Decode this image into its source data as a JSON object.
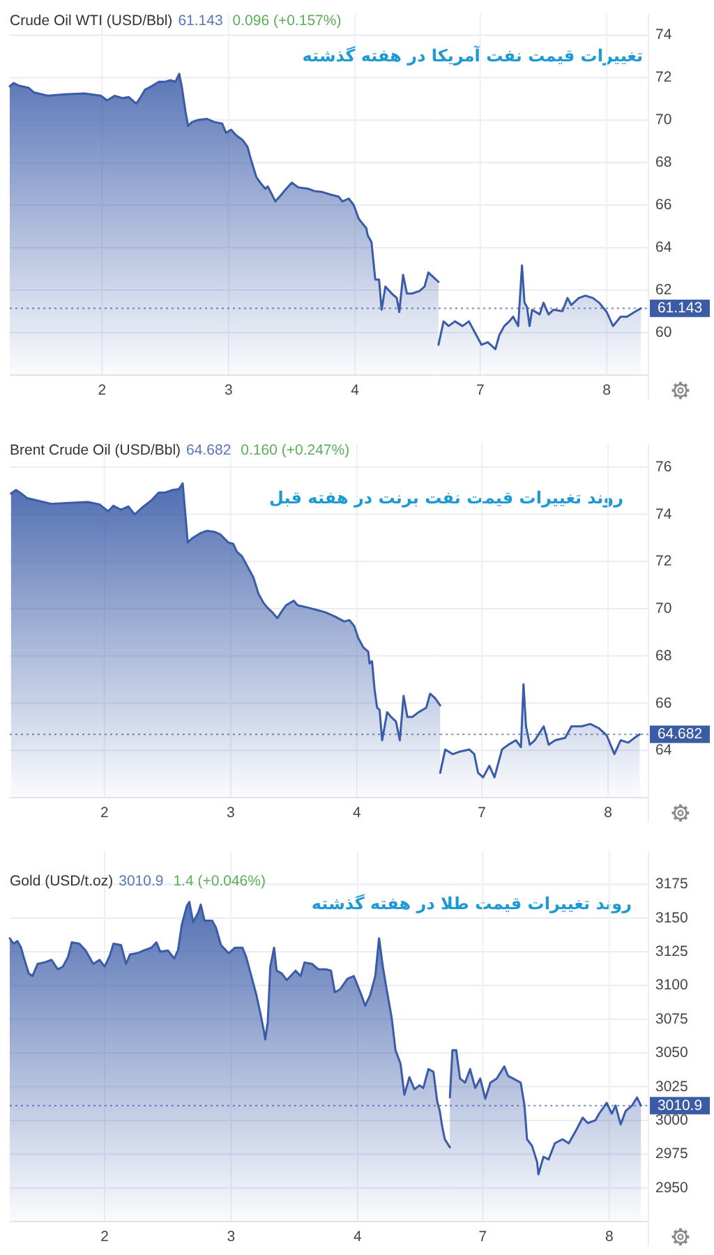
{
  "chart_data": [
    {
      "type": "area",
      "title": "Crude Oil WTI (USD/Bbl)",
      "subtitle": "تغییرات قیمت نفت آمریکا در هفته گذشته",
      "annotations": [
        "61.143",
        "0.096 (+0.157%)"
      ],
      "color": "#3a5ba8",
      "grid": true,
      "tick_labels": "x",
      "x": [
        1.27,
        1.3,
        1.34,
        1.42,
        1.46,
        1.57,
        1.71,
        1.86,
        1.99,
        2.04,
        2.1,
        2.16,
        2.21,
        2.27,
        2.3,
        2.34,
        2.39,
        2.45,
        2.5,
        2.54,
        2.58,
        2.61,
        2.63,
        2.66,
        2.68,
        2.71,
        2.76,
        2.83,
        2.89,
        2.95,
        2.98,
        3.02,
        3.06,
        3.11,
        3.15,
        3.18,
        3.22,
        3.26,
        3.29,
        3.31,
        3.37,
        3.41,
        3.44,
        3.5,
        3.55,
        3.63,
        3.68,
        3.74,
        3.81,
        3.87,
        3.9,
        3.95,
        3.99,
        4.03,
        4.09,
        4.1,
        4.13,
        4.16,
        4.19,
        4.21,
        4.24,
        4.29,
        4.33,
        4.35,
        4.38,
        4.41,
        4.45,
        4.51,
        4.55,
        4.58,
        4.62,
        4.66
      ],
      "values": [
        71.59,
        71.75,
        71.63,
        71.52,
        71.31,
        71.15,
        71.22,
        71.26,
        71.15,
        70.93,
        71.15,
        71.04,
        71.09,
        70.78,
        71.04,
        71.44,
        71.59,
        71.81,
        71.81,
        71.88,
        71.81,
        72.18,
        71.59,
        70.39,
        69.73,
        69.91,
        70.01,
        70.06,
        69.91,
        69.84,
        69.4,
        69.55,
        69.29,
        69.07,
        68.74,
        68.09,
        67.32,
        66.99,
        66.77,
        66.88,
        66.18,
        66.44,
        66.66,
        67.06,
        66.84,
        66.77,
        66.66,
        66.62,
        66.49,
        66.4,
        66.18,
        66.31,
        66.0,
        65.35,
        64.91,
        64.58,
        64.26,
        62.5,
        62.5,
        61.08,
        62.17,
        61.84,
        61.63,
        60.97,
        62.72,
        61.84,
        61.84,
        61.96,
        62.17,
        62.83,
        62.61,
        62.39
      ],
      "xlim": [
        1.27,
        4.66
      ],
      "xticks": [
        2,
        3,
        4
      ],
      "ylim": [
        58,
        75
      ],
      "yticks": [
        60,
        62,
        64,
        66,
        68,
        70,
        72,
        74
      ],
      "ref_lines": [
        {
          "axis": "y",
          "value": 61.143,
          "color": "#3b5ba5",
          "line_style": "dotted"
        }
      ]
    },
    {
      "type": "area",
      "color": "#3a5ba8",
      "grid": true,
      "x": [
        6.67,
        6.71,
        6.75,
        6.8,
        6.86,
        6.91,
        6.97,
        7.01,
        7.06,
        7.12,
        7.15,
        7.19,
        7.23,
        7.26,
        7.3,
        7.33,
        7.35,
        7.37,
        7.39,
        7.41,
        7.47,
        7.5,
        7.54,
        7.58,
        7.65,
        7.69,
        7.72,
        7.78,
        7.83,
        7.89,
        7.94,
        8.0,
        8.05,
        8.11,
        8.16,
        8.22,
        8.27
      ],
      "values": [
        59.43,
        60.53,
        60.31,
        60.53,
        60.31,
        60.53,
        59.87,
        59.43,
        59.55,
        59.22,
        59.87,
        60.31,
        60.53,
        60.75,
        60.31,
        63.16,
        61.41,
        61.19,
        60.31,
        61.08,
        60.86,
        61.41,
        60.86,
        61.08,
        61.01,
        61.63,
        61.3,
        61.63,
        61.74,
        61.63,
        61.41,
        60.97,
        60.31,
        60.75,
        60.75,
        60.97,
        61.14
      ],
      "xlim": [
        6.67,
        8.33
      ],
      "xticks": [
        7,
        8
      ],
      "ylim": [
        58,
        75
      ],
      "yticks": [
        60,
        62,
        64,
        66,
        68,
        70,
        72,
        74
      ],
      "ref_lines": [
        {
          "axis": "y",
          "value": 61.143,
          "label": "61.143",
          "color": "#3b5ba5",
          "line_style": "dotted"
        }
      ]
    },
    {
      "type": "area",
      "title": "Brent Crude Oil (USD/Bbl)",
      "subtitle": "روند تغییرات قیمت نفت برنت در هفته قبل",
      "annotations": [
        "64.682",
        "0.160 (+0.247%)"
      ],
      "color": "#3a5ba8",
      "grid": true,
      "tick_labels": "x",
      "x": [
        1.26,
        1.3,
        1.34,
        1.39,
        1.47,
        1.58,
        1.72,
        1.87,
        1.96,
        2.03,
        2.07,
        2.13,
        2.19,
        2.24,
        2.3,
        2.37,
        2.43,
        2.48,
        2.54,
        2.59,
        2.62,
        2.64,
        2.66,
        2.7,
        2.76,
        2.81,
        2.87,
        2.92,
        2.98,
        3.02,
        3.05,
        3.09,
        3.14,
        3.18,
        3.22,
        3.26,
        3.29,
        3.33,
        3.37,
        3.4,
        3.44,
        3.5,
        3.53,
        3.61,
        3.68,
        3.75,
        3.83,
        3.9,
        3.94,
        3.98,
        4.01,
        4.05,
        4.09,
        4.1,
        4.12,
        4.14,
        4.16,
        4.18,
        4.2,
        4.24,
        4.27,
        4.31,
        4.34,
        4.37,
        4.4,
        4.44,
        4.49,
        4.55,
        4.58,
        4.62,
        4.66
      ],
      "values": [
        74.88,
        75.03,
        74.88,
        74.68,
        74.58,
        74.44,
        74.48,
        74.52,
        74.42,
        74.13,
        74.36,
        74.19,
        74.33,
        73.99,
        74.29,
        74.58,
        74.92,
        74.92,
        75.03,
        75.07,
        75.31,
        74.09,
        72.81,
        73.0,
        73.2,
        73.3,
        73.26,
        73.14,
        72.81,
        72.75,
        72.41,
        72.22,
        71.72,
        71.33,
        70.64,
        70.25,
        70.05,
        69.85,
        69.6,
        69.85,
        70.15,
        70.34,
        70.15,
        70.05,
        69.95,
        69.85,
        69.66,
        69.46,
        69.52,
        69.26,
        68.77,
        68.37,
        68.18,
        67.68,
        67.78,
        66.6,
        65.81,
        65.71,
        64.43,
        65.62,
        65.42,
        65.22,
        64.43,
        66.31,
        65.42,
        65.42,
        65.62,
        65.81,
        66.4,
        66.21,
        65.91
      ],
      "xlim": [
        1.25,
        4.66
      ],
      "xticks": [
        2,
        3,
        4
      ],
      "ylim": [
        62,
        77
      ],
      "yticks": [
        64,
        66,
        68,
        70,
        72,
        74,
        76
      ],
      "ref_lines": [
        {
          "axis": "y",
          "value": 64.682,
          "color": "#3b5ba5",
          "line_style": "dotted"
        }
      ]
    },
    {
      "type": "area",
      "color": "#3a5ba8",
      "grid": true,
      "x": [
        6.67,
        6.71,
        6.77,
        6.82,
        6.9,
        6.94,
        6.97,
        7.01,
        7.06,
        7.1,
        7.16,
        7.21,
        7.27,
        7.31,
        7.33,
        7.35,
        7.38,
        7.42,
        7.49,
        7.53,
        7.58,
        7.66,
        7.71,
        7.79,
        7.86,
        7.93,
        7.99,
        8.05,
        8.1,
        8.16,
        8.21,
        8.25
      ],
      "values": [
        63.05,
        64.04,
        63.84,
        63.94,
        64.04,
        63.84,
        63.05,
        62.86,
        63.35,
        62.86,
        64.04,
        64.24,
        64.43,
        64.14,
        66.8,
        65.02,
        64.24,
        64.43,
        65.02,
        64.24,
        64.43,
        64.53,
        65.02,
        65.02,
        65.12,
        64.93,
        64.63,
        63.84,
        64.43,
        64.33,
        64.53,
        64.68
      ],
      "xlim": [
        6.67,
        8.32
      ],
      "xticks": [
        7,
        8
      ],
      "ylim": [
        62,
        77
      ],
      "yticks": [
        64,
        66,
        68,
        70,
        72,
        74,
        76
      ],
      "ref_lines": [
        {
          "axis": "y",
          "value": 64.682,
          "label": "64.682",
          "color": "#3b5ba5",
          "line_style": "dotted"
        }
      ]
    },
    {
      "type": "area",
      "title": "Gold (USD/t.oz)",
      "subtitle": "روند تغییرات قیمت طلا در هفته گذشته",
      "annotations": [
        "3010.9",
        "1.4 (+0.046%)"
      ],
      "color": "#3a5ba8",
      "grid": true,
      "tick_labels": "x",
      "x": [
        1.25,
        1.28,
        1.31,
        1.34,
        1.36,
        1.4,
        1.43,
        1.47,
        1.52,
        1.58,
        1.63,
        1.67,
        1.71,
        1.74,
        1.8,
        1.85,
        1.91,
        1.96,
        2.0,
        2.04,
        2.07,
        2.13,
        2.17,
        2.2,
        2.26,
        2.31,
        2.37,
        2.41,
        2.44,
        2.5,
        2.55,
        2.58,
        2.61,
        2.65,
        2.67,
        2.7,
        2.74,
        2.76,
        2.79,
        2.85,
        2.88,
        2.92,
        2.98,
        3.03,
        3.09,
        3.12,
        3.16,
        3.2,
        3.23,
        3.26,
        3.27,
        3.29,
        3.31,
        3.34,
        3.36,
        3.4,
        3.44,
        3.47,
        3.51,
        3.55,
        3.58,
        3.64,
        3.69,
        3.75,
        3.79,
        3.82,
        3.86,
        3.92,
        3.97,
        4.03,
        4.06,
        4.1,
        4.14,
        4.17,
        4.2,
        4.23,
        4.27,
        4.3,
        4.34,
        4.37,
        4.41,
        4.45,
        4.49,
        4.52,
        4.56,
        4.6,
        4.63,
        4.65,
        4.67,
        4.69,
        4.73
      ],
      "values": [
        3135,
        3131,
        3133,
        3128,
        3121,
        3109,
        3107,
        3116,
        3117,
        3119,
        3112,
        3114,
        3121,
        3132,
        3131,
        3126,
        3116,
        3119,
        3114,
        3122,
        3131,
        3130,
        3116,
        3123,
        3124,
        3126,
        3128,
        3132,
        3125,
        3126,
        3120,
        3126,
        3145,
        3159,
        3162,
        3147,
        3154,
        3160,
        3148,
        3148,
        3143,
        3130,
        3124,
        3128,
        3128,
        3121,
        3107,
        3093,
        3080,
        3066,
        3060,
        3073,
        3114,
        3128,
        3111,
        3109,
        3104,
        3107,
        3111,
        3107,
        3117,
        3116,
        3112,
        3112,
        3111,
        3095,
        3097,
        3105,
        3107,
        3093,
        3085,
        3093,
        3107,
        3135,
        3114,
        3097,
        3076,
        3052,
        3042,
        3019,
        3032,
        3023,
        3026,
        3024,
        3038,
        3036,
        3014,
        3007,
        2995,
        2986,
        2980
      ],
      "xlim": [
        1.25,
        4.73
      ],
      "xticks": [
        2,
        3,
        4
      ],
      "ylim": [
        2925,
        3200
      ],
      "yticks": [
        2950,
        2975,
        3000,
        3025,
        3050,
        3075,
        3100,
        3125,
        3150,
        3175
      ],
      "ref_lines": [
        {
          "axis": "y",
          "value": 3010.9,
          "color": "#3b5ba5",
          "line_style": "dotted"
        }
      ]
    },
    {
      "type": "area",
      "color": "#3a5ba8",
      "grid": true,
      "x": [
        6.74,
        6.76,
        6.79,
        6.82,
        6.86,
        6.9,
        6.94,
        6.98,
        7.02,
        7.06,
        7.11,
        7.17,
        7.2,
        7.24,
        7.3,
        7.33,
        7.35,
        7.39,
        7.43,
        7.44,
        7.48,
        7.52,
        7.57,
        7.63,
        7.68,
        7.74,
        7.79,
        7.83,
        7.89,
        7.92,
        7.98,
        8.02,
        8.05,
        8.09,
        8.13,
        8.18,
        8.22,
        8.25
      ],
      "values": [
        3017,
        3052,
        3052,
        3031,
        3028,
        3038,
        3024,
        3031,
        3016,
        3028,
        3031,
        3040,
        3033,
        3031,
        3028,
        3011,
        2986,
        2981,
        2969,
        2960,
        2973,
        2971,
        2983,
        2986,
        2983,
        2993,
        3002,
        2998,
        3000,
        3005,
        3013,
        3005,
        3011,
        2997,
        3007,
        3011,
        3017,
        3011
      ],
      "xlim": [
        6.74,
        8.31
      ],
      "xticks": [
        7,
        8
      ],
      "ylim": [
        2925,
        3200
      ],
      "yticks": [
        2950,
        2975,
        3000,
        3025,
        3050,
        3075,
        3100,
        3125,
        3150,
        3175
      ],
      "ref_lines": [
        {
          "axis": "y",
          "value": 3010.9,
          "label": "3010.9",
          "color": "#3b5ba5",
          "line_style": "dotted"
        }
      ]
    }
  ]
}
